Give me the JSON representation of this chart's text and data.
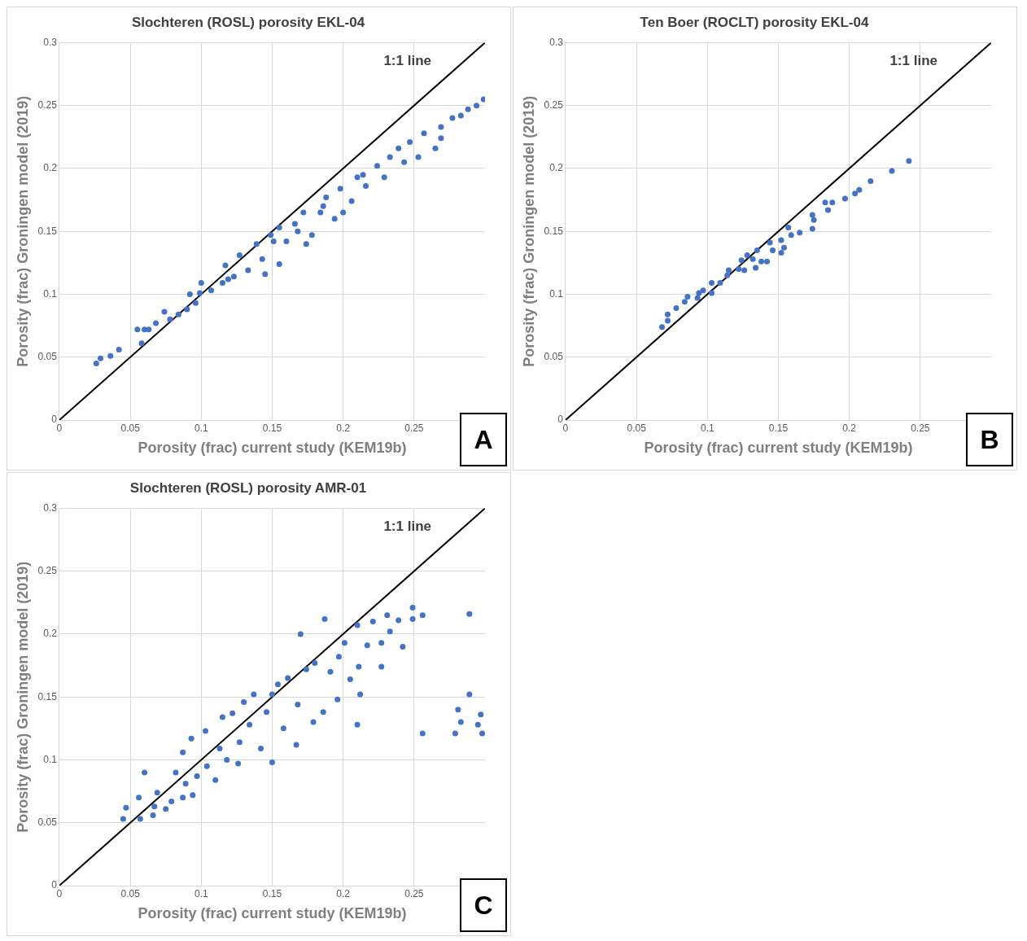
{
  "chart_data": [
    {
      "type": "scatter",
      "title": "Slochteren (ROSL) porosity EKL-04",
      "xlabel": "Porosity (frac) current study (KEM19b)",
      "ylabel": "Porosity (frac) Groningen model (2019)",
      "annotations": [
        "1:1 line",
        "A"
      ],
      "xlim": [
        0,
        0.3
      ],
      "ylim": [
        0,
        0.3
      ],
      "xticks": [
        0,
        0.05,
        0.1,
        0.15,
        0.2,
        0.25
      ],
      "yticks": [
        0,
        0.05,
        0.1,
        0.15,
        0.2,
        0.25,
        0.3
      ],
      "grid": true,
      "marker": "circle",
      "series": [
        {
          "type": "scatter",
          "color": "#4472c4",
          "x": [
            0.026,
            0.029,
            0.036,
            0.042,
            0.055,
            0.06,
            0.063,
            0.058,
            0.068,
            0.074,
            0.078,
            0.084,
            0.09,
            0.092,
            0.096,
            0.1,
            0.099,
            0.107,
            0.115,
            0.117,
            0.123,
            0.127,
            0.133,
            0.139,
            0.143,
            0.145,
            0.149,
            0.155,
            0.155,
            0.16,
            0.166,
            0.174,
            0.172,
            0.178,
            0.184,
            0.188,
            0.194,
            0.198,
            0.206,
            0.21,
            0.216,
            0.224,
            0.229,
            0.233,
            0.243,
            0.247,
            0.253,
            0.257,
            0.265,
            0.269,
            0.277,
            0.283,
            0.288,
            0.294,
            0.299,
            0.269,
            0.239,
            0.214,
            0.186,
            0.2,
            0.168,
            0.151,
            0.119
          ],
          "values": [
            0.045,
            0.049,
            0.051,
            0.056,
            0.072,
            0.072,
            0.072,
            0.061,
            0.077,
            0.086,
            0.08,
            0.084,
            0.088,
            0.1,
            0.093,
            0.109,
            0.101,
            0.103,
            0.109,
            0.123,
            0.114,
            0.131,
            0.119,
            0.14,
            0.128,
            0.116,
            0.147,
            0.124,
            0.153,
            0.142,
            0.156,
            0.14,
            0.165,
            0.147,
            0.165,
            0.177,
            0.16,
            0.184,
            0.174,
            0.193,
            0.186,
            0.202,
            0.193,
            0.209,
            0.205,
            0.221,
            0.209,
            0.228,
            0.216,
            0.233,
            0.24,
            0.242,
            0.247,
            0.25,
            0.255,
            0.224,
            0.216,
            0.195,
            0.17,
            0.165,
            0.15,
            0.142,
            0.112
          ]
        },
        {
          "type": "line",
          "color": "#000000",
          "marker": "none",
          "x": [
            0,
            0.3
          ],
          "values": [
            0,
            0.3
          ]
        }
      ]
    },
    {
      "type": "scatter",
      "title": "Ten Boer (ROCLT) porosity EKL-04",
      "xlabel": "Porosity (frac) current study (KEM19b)",
      "ylabel": "Porosity (frac) Groningen model (2019)",
      "annotations": [
        "1:1 line",
        "B"
      ],
      "xlim": [
        0,
        0.3
      ],
      "ylim": [
        0,
        0.3
      ],
      "xticks": [
        0,
        0.05,
        0.1,
        0.15,
        0.2,
        0.25
      ],
      "yticks": [
        0,
        0.05,
        0.1,
        0.15,
        0.2,
        0.25,
        0.3
      ],
      "grid": true,
      "marker": "circle",
      "series": [
        {
          "type": "scatter",
          "color": "#4472c4",
          "x": [
            0.068,
            0.072,
            0.072,
            0.078,
            0.084,
            0.086,
            0.093,
            0.094,
            0.097,
            0.103,
            0.103,
            0.109,
            0.114,
            0.115,
            0.122,
            0.124,
            0.126,
            0.128,
            0.132,
            0.134,
            0.135,
            0.138,
            0.142,
            0.144,
            0.146,
            0.152,
            0.152,
            0.154,
            0.157,
            0.159,
            0.165,
            0.174,
            0.175,
            0.174,
            0.183,
            0.188,
            0.185,
            0.197,
            0.204,
            0.207,
            0.215,
            0.23,
            0.242
          ],
          "values": [
            0.074,
            0.079,
            0.084,
            0.089,
            0.094,
            0.098,
            0.097,
            0.101,
            0.103,
            0.101,
            0.109,
            0.109,
            0.115,
            0.119,
            0.12,
            0.127,
            0.119,
            0.131,
            0.128,
            0.121,
            0.135,
            0.126,
            0.126,
            0.141,
            0.135,
            0.133,
            0.143,
            0.137,
            0.153,
            0.147,
            0.149,
            0.163,
            0.159,
            0.152,
            0.173,
            0.173,
            0.167,
            0.176,
            0.18,
            0.183,
            0.19,
            0.198,
            0.206
          ]
        },
        {
          "type": "line",
          "color": "#000000",
          "marker": "none",
          "x": [
            0,
            0.3
          ],
          "values": [
            0,
            0.3
          ]
        }
      ]
    },
    {
      "type": "scatter",
      "title": "Slochteren (ROSL) porosity AMR-01",
      "xlabel": "Porosity (frac) current study (KEM19b)",
      "ylabel": "Porosity (frac) Groningen model (2019)",
      "annotations": [
        "1:1 line",
        "C"
      ],
      "xlim": [
        0,
        0.3
      ],
      "ylim": [
        0,
        0.3
      ],
      "xticks": [
        0,
        0.05,
        0.1,
        0.15,
        0.2,
        0.25
      ],
      "yticks": [
        0,
        0.05,
        0.1,
        0.15,
        0.2,
        0.25,
        0.3
      ],
      "grid": true,
      "marker": "circle",
      "series": [
        {
          "type": "scatter",
          "color": "#4472c4",
          "x": [
            0.045,
            0.047,
            0.057,
            0.056,
            0.06,
            0.066,
            0.067,
            0.069,
            0.075,
            0.079,
            0.082,
            0.087,
            0.089,
            0.087,
            0.094,
            0.093,
            0.097,
            0.103,
            0.104,
            0.11,
            0.113,
            0.115,
            0.118,
            0.122,
            0.126,
            0.127,
            0.13,
            0.134,
            0.137,
            0.142,
            0.146,
            0.15,
            0.15,
            0.154,
            0.158,
            0.161,
            0.167,
            0.168,
            0.17,
            0.174,
            0.179,
            0.18,
            0.186,
            0.187,
            0.191,
            0.196,
            0.197,
            0.201,
            0.205,
            0.21,
            0.21,
            0.212,
            0.211,
            0.217,
            0.221,
            0.227,
            0.227,
            0.231,
            0.233,
            0.239,
            0.242,
            0.249,
            0.249,
            0.256,
            0.256,
            0.279,
            0.281,
            0.283,
            0.289,
            0.289,
            0.295,
            0.297,
            0.298
          ],
          "values": [
            0.053,
            0.062,
            0.053,
            0.07,
            0.09,
            0.056,
            0.063,
            0.074,
            0.061,
            0.067,
            0.09,
            0.07,
            0.081,
            0.106,
            0.072,
            0.117,
            0.087,
            0.123,
            0.095,
            0.084,
            0.109,
            0.134,
            0.1,
            0.137,
            0.097,
            0.114,
            0.146,
            0.128,
            0.152,
            0.109,
            0.138,
            0.098,
            0.152,
            0.16,
            0.125,
            0.165,
            0.112,
            0.144,
            0.2,
            0.172,
            0.13,
            0.177,
            0.138,
            0.212,
            0.17,
            0.148,
            0.182,
            0.193,
            0.164,
            0.128,
            0.207,
            0.152,
            0.174,
            0.191,
            0.21,
            0.174,
            0.193,
            0.215,
            0.202,
            0.211,
            0.19,
            0.221,
            0.212,
            0.215,
            0.121,
            0.121,
            0.14,
            0.13,
            0.152,
            0.216,
            0.128,
            0.136,
            0.121
          ]
        },
        {
          "type": "line",
          "color": "#000000",
          "marker": "none",
          "x": [
            0,
            0.3
          ],
          "values": [
            0,
            0.3
          ]
        }
      ]
    }
  ]
}
